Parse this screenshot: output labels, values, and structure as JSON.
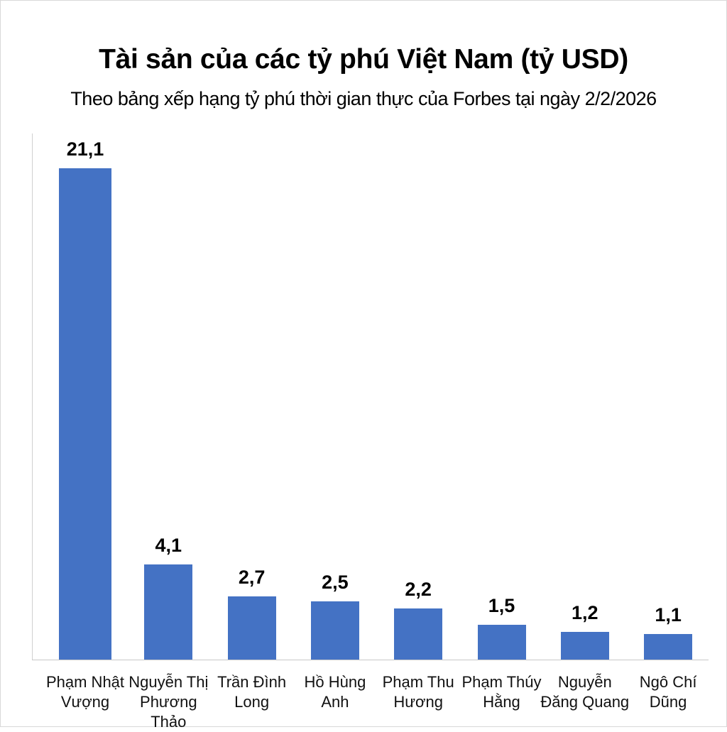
{
  "title": "Tài sản của các tỷ phú Việt Nam (tỷ USD)",
  "subtitle": "Theo bảng xếp hạng tỷ phú thời gian thực của Forbes tại ngày 2/2/2026",
  "colors": {
    "bar": "#4472C4",
    "axis": "#c8c8c8"
  },
  "chart_data": {
    "type": "bar",
    "title": "Tài sản của các tỷ phú Việt Nam (tỷ USD)",
    "subtitle": "Theo bảng xếp hạng tỷ phú thời gian thực của Forbes tại ngày 2/2/2026",
    "categories": [
      "Phạm Nhật Vượng",
      "Nguyễn Thị Phương Thảo",
      "Trần Đình Long",
      "Hồ Hùng Anh",
      "Phạm Thu Hương",
      "Phạm Thúy Hằng",
      "Nguyễn Đăng Quang",
      "Ngô Chí Dũng"
    ],
    "category_lines": [
      [
        "Phạm Nhật",
        "Vượng"
      ],
      [
        "Nguyễn Thị",
        "Phương Thảo"
      ],
      [
        "Trần Đình",
        "Long"
      ],
      [
        "Hồ Hùng",
        "Anh"
      ],
      [
        "Phạm Thu",
        "Hương"
      ],
      [
        "Phạm Thúy",
        "Hằng"
      ],
      [
        "Nguyễn",
        "Đăng Quang"
      ],
      [
        "Ngô Chí",
        "Dũng"
      ]
    ],
    "values": [
      21.1,
      4.1,
      2.7,
      2.5,
      2.2,
      1.5,
      1.2,
      1.1
    ],
    "value_labels": [
      "21,1",
      "4,1",
      "2,7",
      "2,5",
      "2,2",
      "1,5",
      "1,2",
      "1,1"
    ],
    "xlabel": "",
    "ylabel": "",
    "ylim": [
      0,
      24
    ],
    "grid": false,
    "legend": null
  }
}
